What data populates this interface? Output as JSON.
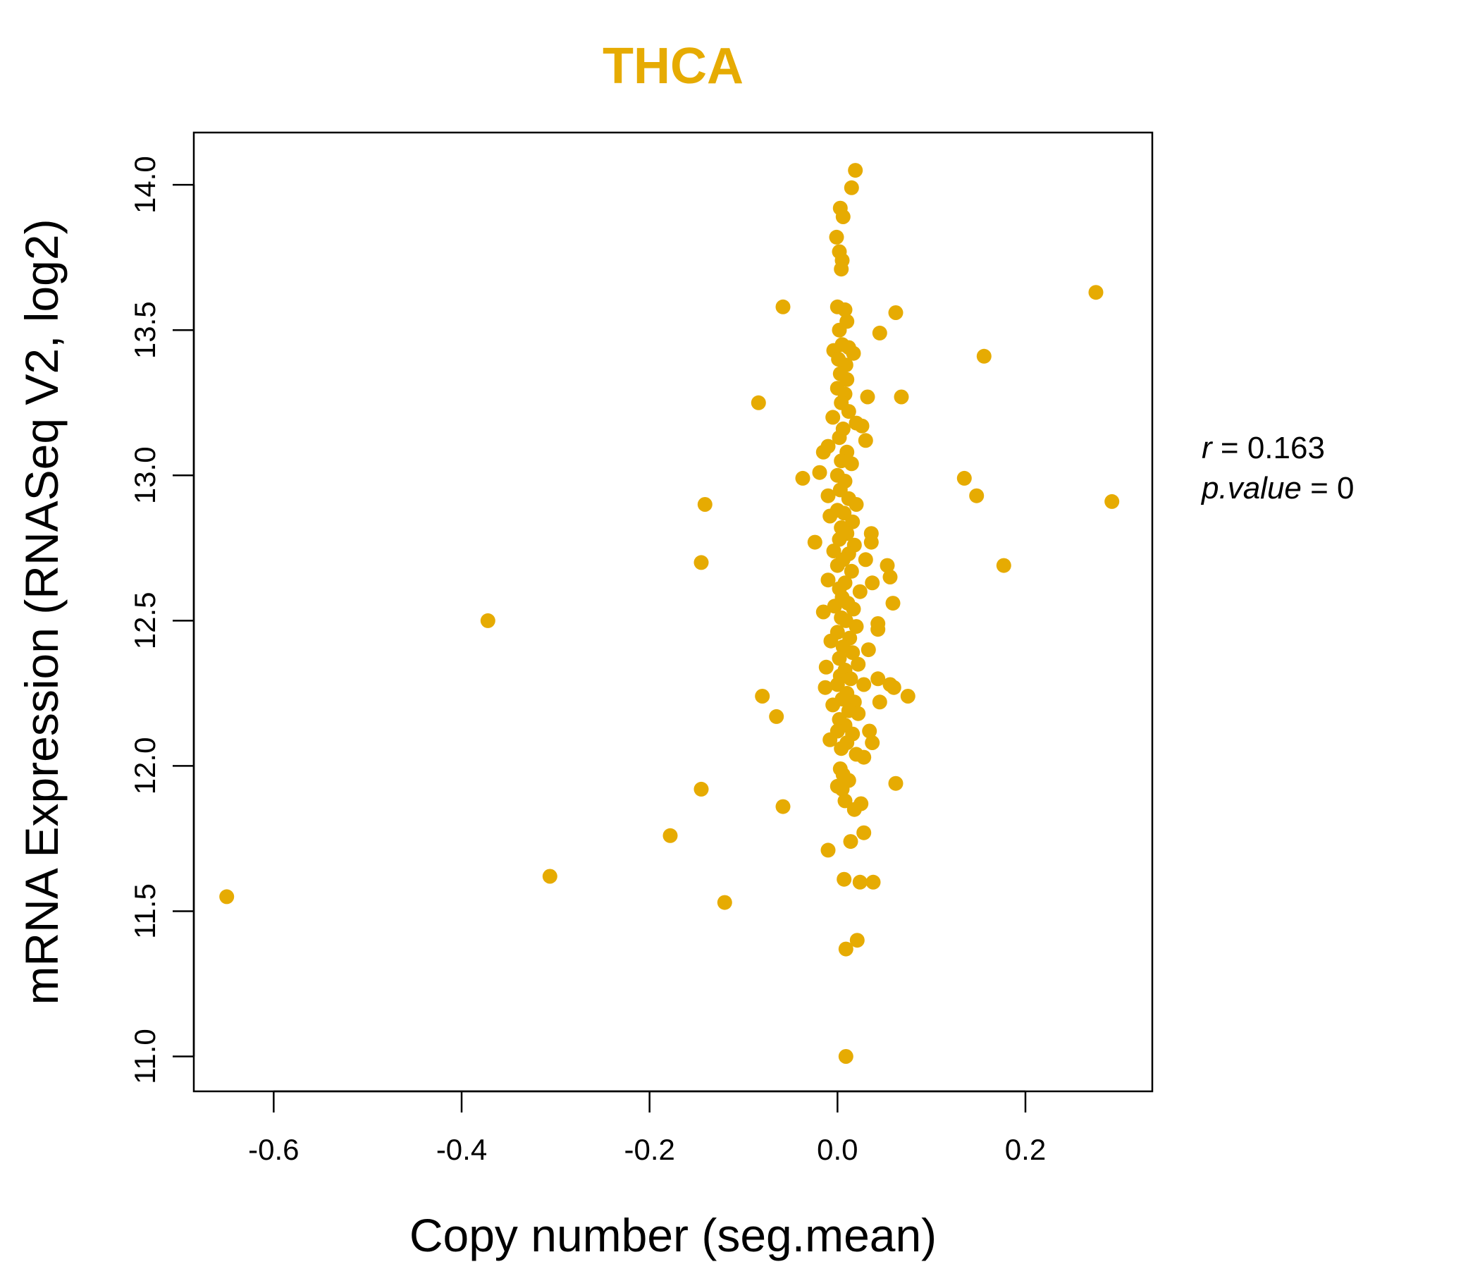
{
  "chart_data": {
    "type": "scatter",
    "title": "THCA",
    "xlabel": "Copy number (seg.mean)",
    "ylabel": "mRNA Expression (RNASeq V2, log2)",
    "xlim": [
      -0.685,
      0.335
    ],
    "ylim": [
      10.88,
      14.18
    ],
    "xticks": [
      -0.6,
      -0.4,
      -0.2,
      0.0,
      0.2
    ],
    "xtick_labels": [
      "-0.6",
      "-0.4",
      "-0.2",
      "0.0",
      "0.2"
    ],
    "yticks": [
      11.0,
      11.5,
      12.0,
      12.5,
      13.0,
      13.5,
      14.0
    ],
    "ytick_labels": [
      "11.0",
      "11.5",
      "12.0",
      "12.5",
      "13.0",
      "13.5",
      "14.0"
    ],
    "point_color": "#E6AB02",
    "annotation": {
      "r_label": "r",
      "r_value": "0.163",
      "p_label": "p.value",
      "p_value": "0"
    },
    "series": [
      {
        "name": "samples",
        "points": [
          [
            0.019,
            14.05
          ],
          [
            0.015,
            13.99
          ],
          [
            0.003,
            13.92
          ],
          [
            0.006,
            13.89
          ],
          [
            -0.001,
            13.82
          ],
          [
            0.002,
            13.77
          ],
          [
            0.005,
            13.74
          ],
          [
            0.004,
            13.71
          ],
          [
            0.0,
            13.58
          ],
          [
            0.008,
            13.57
          ],
          [
            0.01,
            13.53
          ],
          [
            0.002,
            13.5
          ],
          [
            0.005,
            13.45
          ],
          [
            0.012,
            13.44
          ],
          [
            -0.004,
            13.43
          ],
          [
            0.017,
            13.42
          ],
          [
            0.001,
            13.4
          ],
          [
            0.009,
            13.38
          ],
          [
            0.003,
            13.35
          ],
          [
            0.01,
            13.33
          ],
          [
            0.0,
            13.3
          ],
          [
            0.008,
            13.28
          ],
          [
            0.004,
            13.25
          ],
          [
            0.012,
            13.22
          ],
          [
            -0.005,
            13.2
          ],
          [
            0.02,
            13.18
          ],
          [
            0.006,
            13.16
          ],
          [
            0.026,
            13.17
          ],
          [
            0.002,
            13.13
          ],
          [
            0.03,
            13.12
          ],
          [
            -0.01,
            13.1
          ],
          [
            0.01,
            13.08
          ],
          [
            -0.015,
            13.08
          ],
          [
            0.004,
            13.05
          ],
          [
            0.015,
            13.04
          ],
          [
            0.0,
            13.0
          ],
          [
            -0.019,
            13.01
          ],
          [
            0.008,
            12.98
          ],
          [
            0.003,
            12.95
          ],
          [
            -0.01,
            12.93
          ],
          [
            0.012,
            12.92
          ],
          [
            0.02,
            12.9
          ],
          [
            0.0,
            12.88
          ],
          [
            0.007,
            12.87
          ],
          [
            -0.008,
            12.86
          ],
          [
            0.016,
            12.84
          ],
          [
            0.004,
            12.82
          ],
          [
            0.01,
            12.8
          ],
          [
            0.002,
            12.78
          ],
          [
            0.018,
            12.76
          ],
          [
            -0.004,
            12.74
          ],
          [
            0.012,
            12.73
          ],
          [
            0.006,
            12.71
          ],
          [
            0.03,
            12.71
          ],
          [
            0.0,
            12.69
          ],
          [
            0.015,
            12.67
          ],
          [
            -0.01,
            12.64
          ],
          [
            0.008,
            12.63
          ],
          [
            0.002,
            12.61
          ],
          [
            0.024,
            12.6
          ],
          [
            0.005,
            12.58
          ],
          [
            0.011,
            12.56
          ],
          [
            -0.003,
            12.55
          ],
          [
            0.017,
            12.54
          ],
          [
            -0.015,
            12.53
          ],
          [
            0.004,
            12.51
          ],
          [
            0.009,
            12.5
          ],
          [
            0.02,
            12.48
          ],
          [
            0.0,
            12.46
          ],
          [
            0.013,
            12.44
          ],
          [
            -0.007,
            12.43
          ],
          [
            0.006,
            12.41
          ],
          [
            0.016,
            12.39
          ],
          [
            0.002,
            12.37
          ],
          [
            0.022,
            12.35
          ],
          [
            -0.012,
            12.34
          ],
          [
            0.008,
            12.33
          ],
          [
            0.003,
            12.31
          ],
          [
            0.014,
            12.3
          ],
          [
            0.0,
            12.28
          ],
          [
            0.028,
            12.28
          ],
          [
            -0.013,
            12.27
          ],
          [
            0.01,
            12.25
          ],
          [
            0.005,
            12.23
          ],
          [
            0.018,
            12.22
          ],
          [
            -0.005,
            12.21
          ],
          [
            0.012,
            12.19
          ],
          [
            0.022,
            12.18
          ],
          [
            0.002,
            12.16
          ],
          [
            0.008,
            12.14
          ],
          [
            0.0,
            12.12
          ],
          [
            0.016,
            12.11
          ],
          [
            -0.008,
            12.09
          ],
          [
            0.01,
            12.08
          ],
          [
            0.004,
            12.06
          ],
          [
            0.02,
            12.04
          ],
          [
            0.003,
            11.99
          ],
          [
            0.006,
            11.97
          ],
          [
            0.012,
            11.95
          ],
          [
            0.0,
            11.93
          ],
          [
            0.005,
            11.92
          ],
          [
            0.025,
            11.87
          ],
          [
            0.008,
            11.88
          ],
          [
            0.018,
            11.85
          ],
          [
            0.028,
            11.77
          ],
          [
            0.014,
            11.74
          ],
          [
            -0.01,
            11.71
          ],
          [
            0.007,
            11.61
          ],
          [
            0.024,
            11.6
          ],
          [
            0.038,
            11.6
          ],
          [
            0.021,
            11.4
          ],
          [
            0.009,
            11.37
          ],
          [
            0.009,
            11.0
          ],
          [
            0.032,
            13.27
          ],
          [
            0.045,
            13.49
          ],
          [
            0.062,
            13.56
          ],
          [
            0.068,
            13.27
          ],
          [
            0.036,
            12.8
          ],
          [
            0.036,
            12.77
          ],
          [
            0.053,
            12.69
          ],
          [
            0.056,
            12.65
          ],
          [
            0.037,
            12.63
          ],
          [
            0.059,
            12.56
          ],
          [
            0.043,
            12.49
          ],
          [
            0.043,
            12.47
          ],
          [
            0.033,
            12.4
          ],
          [
            0.043,
            12.3
          ],
          [
            0.056,
            12.28
          ],
          [
            0.06,
            12.27
          ],
          [
            0.045,
            12.22
          ],
          [
            0.075,
            12.24
          ],
          [
            0.034,
            12.12
          ],
          [
            0.037,
            12.08
          ],
          [
            0.028,
            12.03
          ],
          [
            0.062,
            11.94
          ],
          [
            -0.058,
            13.58
          ],
          [
            -0.084,
            13.25
          ],
          [
            -0.037,
            12.99
          ],
          [
            -0.141,
            12.9
          ],
          [
            -0.145,
            12.7
          ],
          [
            -0.024,
            12.77
          ],
          [
            -0.08,
            12.24
          ],
          [
            -0.065,
            12.17
          ],
          [
            -0.145,
            11.92
          ],
          [
            -0.058,
            11.86
          ],
          [
            -0.178,
            11.76
          ],
          [
            -0.12,
            11.53
          ],
          [
            -0.372,
            12.5
          ],
          [
            -0.306,
            11.62
          ],
          [
            -0.65,
            11.55
          ],
          [
            0.275,
            13.63
          ],
          [
            0.156,
            13.41
          ],
          [
            0.135,
            12.99
          ],
          [
            0.148,
            12.93
          ],
          [
            0.292,
            12.91
          ],
          [
            0.177,
            12.69
          ]
        ]
      }
    ]
  }
}
